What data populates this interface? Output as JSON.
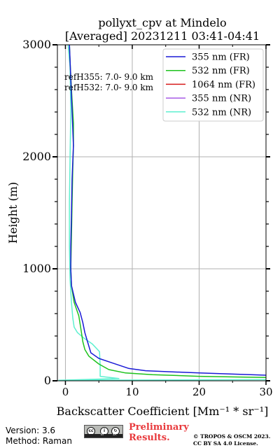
{
  "chart_data": {
    "type": "line",
    "title_lines": [
      "pollyxt_cpv at Mindelo",
      "[Averaged] 20231211 03:41-04:41"
    ],
    "xlabel": "Backscatter Coefficient [Mm⁻¹ * sr⁻¹]",
    "ylabel": "Height (m)",
    "xlim": [
      -1.2,
      30
    ],
    "ylim": [
      0,
      3000
    ],
    "xticks": [
      0,
      10,
      20,
      30
    ],
    "yticks": [
      0,
      1000,
      2000,
      3000
    ],
    "grid": true,
    "legend_position": "top-right",
    "annotations": [
      "refH355:  7.0- 9.0 km",
      "refH532:  7.0- 9.0 km"
    ],
    "series": [
      {
        "name": "355 nm (FR)",
        "color": "#1a1ad6",
        "points": [
          [
            30.0,
            50
          ],
          [
            20.0,
            70
          ],
          [
            12.0,
            90
          ],
          [
            9.5,
            110
          ],
          [
            7.0,
            160
          ],
          [
            5.0,
            200
          ],
          [
            3.8,
            250
          ],
          [
            3.3,
            350
          ],
          [
            2.9,
            430
          ],
          [
            2.6,
            520
          ],
          [
            2.2,
            610
          ],
          [
            1.5,
            700
          ],
          [
            0.9,
            850
          ],
          [
            0.8,
            1000
          ],
          [
            0.8,
            1200
          ],
          [
            0.9,
            1500
          ],
          [
            1.0,
            1800
          ],
          [
            1.2,
            2100
          ],
          [
            1.0,
            2400
          ],
          [
            0.8,
            2700
          ],
          [
            0.6,
            3000
          ]
        ]
      },
      {
        "name": "532 nm (FR)",
        "color": "#1dc21d",
        "points": [
          [
            30.0,
            30
          ],
          [
            20.0,
            40
          ],
          [
            13.0,
            55
          ],
          [
            9.0,
            70
          ],
          [
            6.5,
            100
          ],
          [
            5.0,
            150
          ],
          [
            3.5,
            220
          ],
          [
            2.9,
            280
          ],
          [
            2.6,
            350
          ],
          [
            2.3,
            470
          ],
          [
            2.0,
            580
          ],
          [
            1.3,
            700
          ],
          [
            0.9,
            850
          ],
          [
            0.8,
            1000
          ],
          [
            0.9,
            1300
          ],
          [
            1.0,
            1600
          ],
          [
            1.1,
            1900
          ],
          [
            1.2,
            2100
          ],
          [
            1.2,
            2300
          ],
          [
            0.9,
            2600
          ],
          [
            0.7,
            2850
          ],
          [
            0.6,
            3000
          ]
        ]
      },
      {
        "name": "1064 nm (FR)",
        "color": "#d61a1a",
        "points": []
      },
      {
        "name": "355 nm (NR)",
        "color": "#a85ae6",
        "points": []
      },
      {
        "name": "532 nm (NR)",
        "color": "#5ef0d0",
        "points": [
          [
            30.0,
            10
          ],
          [
            -1.0,
            5
          ],
          [
            8.0,
            20
          ],
          [
            5.2,
            40
          ],
          [
            5.2,
            130
          ],
          [
            5.1,
            260
          ],
          [
            4.0,
            330
          ],
          [
            2.8,
            380
          ],
          [
            1.8,
            430
          ],
          [
            1.3,
            480
          ],
          [
            1.1,
            560
          ],
          [
            0.9,
            700
          ],
          [
            0.7,
            900
          ],
          [
            0.6,
            1200
          ],
          [
            0.6,
            1600
          ],
          [
            0.7,
            2000
          ],
          [
            0.8,
            2400
          ],
          [
            0.7,
            2800
          ],
          [
            0.4,
            3000
          ]
        ]
      }
    ]
  },
  "footer": {
    "version": "Version: 3.6",
    "method": "Method: Raman",
    "preliminary_line1": "Preliminary",
    "preliminary_line2": "Results.",
    "copyright_line1": "© TROPOS & OSCM 2023.",
    "copyright_line2": "CC BY SA 4.0 License."
  },
  "license_badge": {
    "circle_labels": [
      "cc",
      "i",
      "↻"
    ],
    "by_label": "BY",
    "sa_label": "SA"
  }
}
